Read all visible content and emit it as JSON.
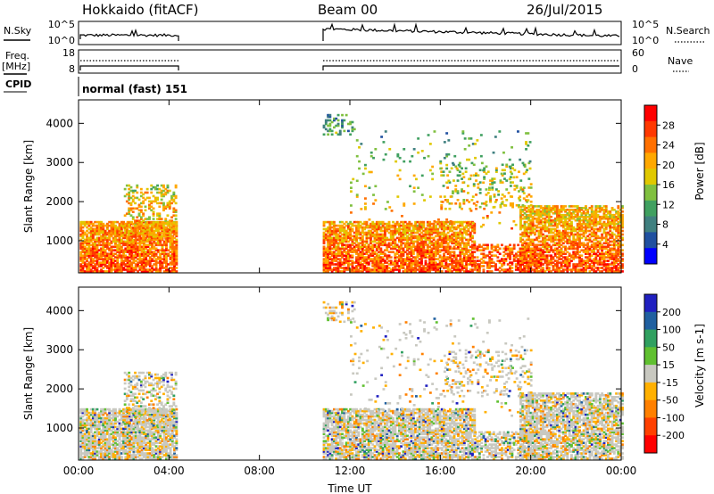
{
  "header": {
    "station": "Hokkaido (fitACF)",
    "beam": "Beam 00",
    "date": "26/Jul/2015"
  },
  "strip_panels": {
    "nsky_label": "N.Sky",
    "nsky_ticks": [
      "10^5",
      "10^0"
    ],
    "nsearch_label": "N.Search",
    "nsearch_ticks": [
      "10^5",
      "10^0"
    ],
    "freq_label_top": "Freq.",
    "freq_label_unit": "[MHz]",
    "freq_ticks": [
      "18",
      "8"
    ],
    "nave_label": "Nave",
    "nave_ticks": [
      "60",
      "0"
    ],
    "cpid_label": "CPID",
    "cpid_value": "normal (fast) 151"
  },
  "chart_data": [
    {
      "type": "heatmap",
      "title": "",
      "ylabel": "Slant Range [km]",
      "xlabel": "",
      "x_ticks": [
        "00:00",
        "04:00",
        "08:00",
        "12:00",
        "16:00",
        "20:00",
        "00:00"
      ],
      "y_ticks": [
        1000,
        2000,
        3000,
        4000
      ],
      "xlim_hours": [
        0,
        24
      ],
      "ylim_km": [
        180,
        4600
      ],
      "data_gap_hours": [
        4.3,
        10.8
      ],
      "colorbar": {
        "label": "Power [dB]",
        "ticks": [
          "28",
          "24",
          "20",
          "16",
          "12",
          "8",
          "4"
        ],
        "colors": [
          "#ff0000",
          "#ff3800",
          "#ff7000",
          "#ffa800",
          "#e0c800",
          "#80c040",
          "#40a060",
          "#408080",
          "#2050a0",
          "#0000ff"
        ]
      }
    },
    {
      "type": "heatmap",
      "title": "",
      "ylabel": "Slant Range [km]",
      "xlabel": "Time UT",
      "x_ticks": [
        "00:00",
        "04:00",
        "08:00",
        "12:00",
        "16:00",
        "20:00",
        "00:00"
      ],
      "y_ticks": [
        1000,
        2000,
        3000,
        4000
      ],
      "xlim_hours": [
        0,
        24
      ],
      "ylim_km": [
        180,
        4600
      ],
      "data_gap_hours": [
        4.3,
        10.8
      ],
      "colorbar": {
        "label": "Velocity [m s-1]",
        "ticks": [
          "200",
          "100",
          "50",
          "15",
          "-15",
          "-50",
          "-100",
          "-200"
        ],
        "colors": [
          "#2020c0",
          "#2060a0",
          "#30a060",
          "#60c030",
          "#c8c8c0",
          "#ffb000",
          "#ff8000",
          "#ff4000",
          "#ff0000"
        ]
      }
    }
  ]
}
